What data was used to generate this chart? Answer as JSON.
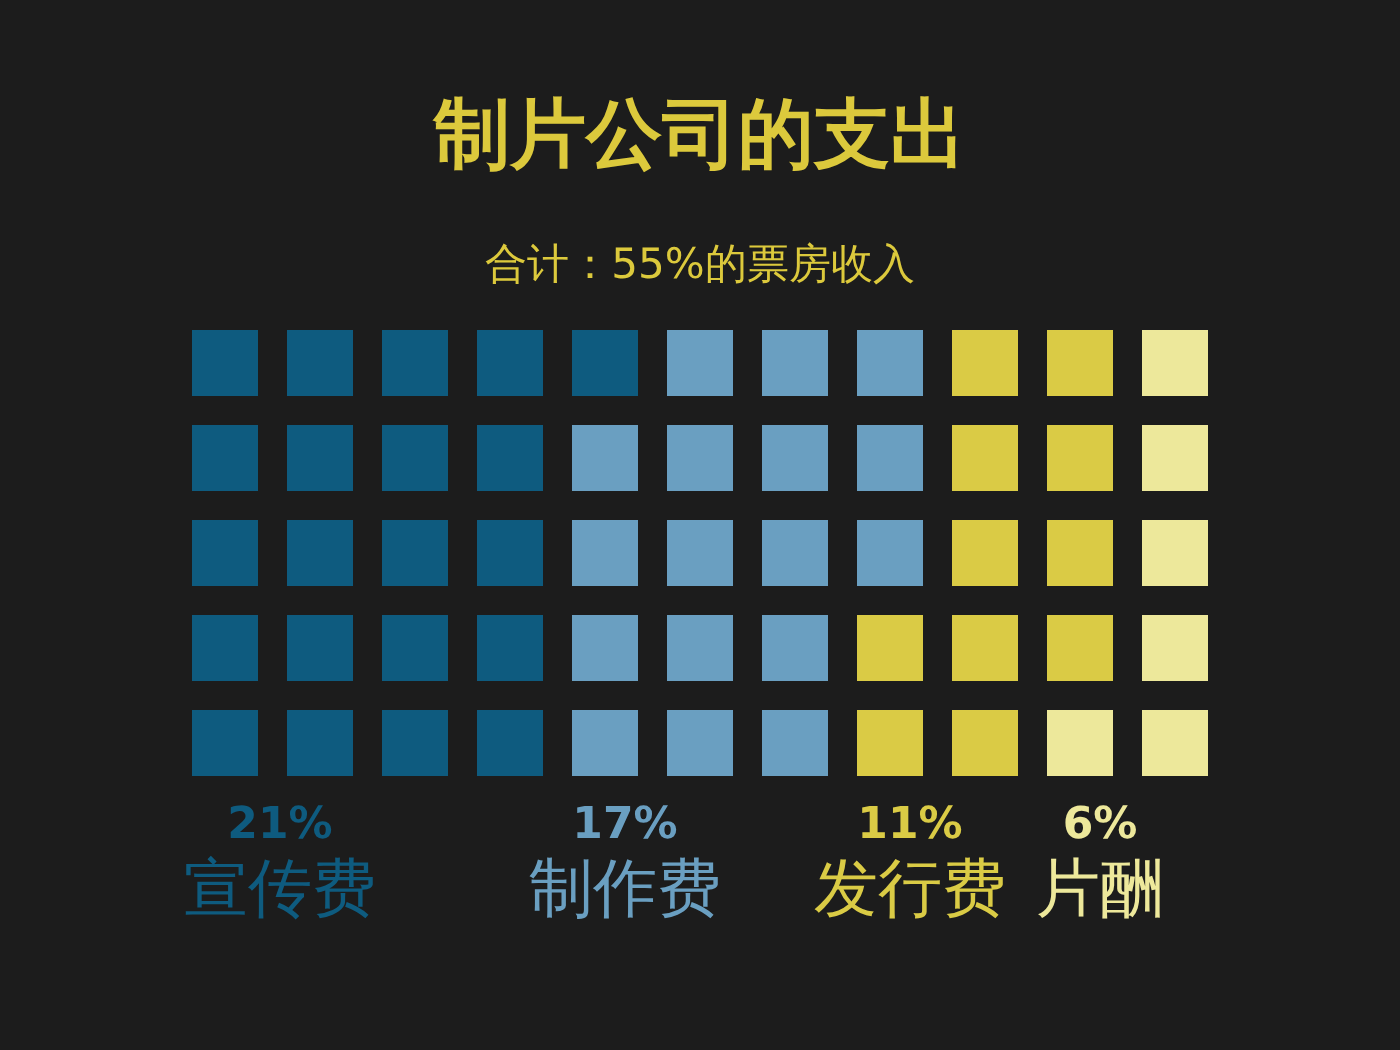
{
  "chart_data": {
    "type": "other",
    "title": "制片公司的支出",
    "subtitle": "合计：55%的票房收入",
    "categories": [
      "宣传费",
      "制作费",
      "发行费",
      "片酬"
    ],
    "values": [
      21,
      17,
      11,
      6
    ],
    "value_labels": [
      "21%",
      "17%",
      "11%",
      "6%"
    ],
    "colors": [
      "#0e5b7f",
      "#6a9fc1",
      "#dacb45",
      "#ede89b"
    ]
  }
}
